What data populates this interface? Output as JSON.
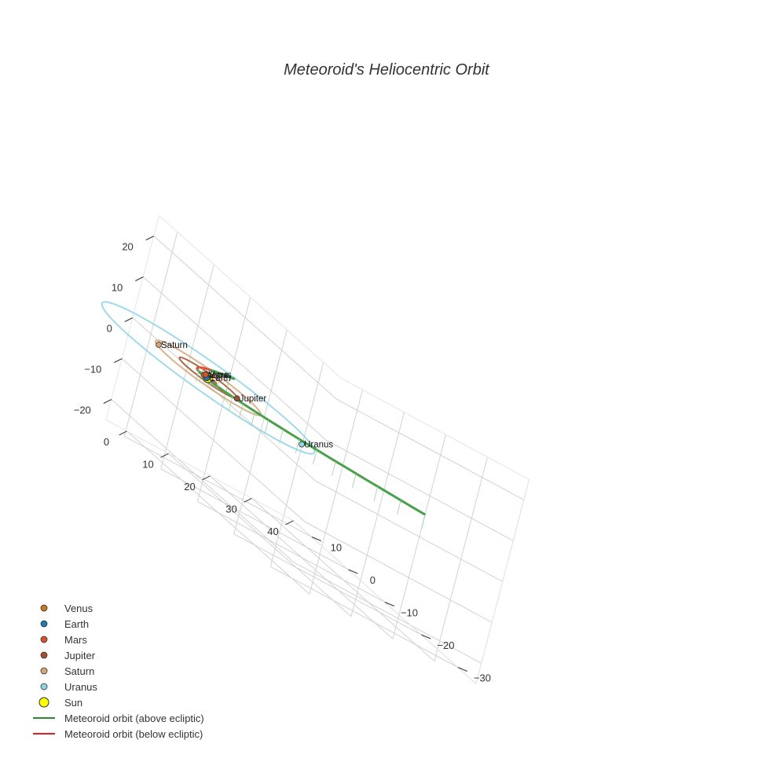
{
  "chart_data": {
    "type": "scatter3d",
    "title": "Meteoroid's Heliocentric Orbit",
    "axes": {
      "x": {
        "range": [
          -5,
          40
        ],
        "ticks": [
          0,
          10,
          20,
          30,
          40
        ],
        "label": ""
      },
      "y": {
        "range": [
          -35,
          15
        ],
        "ticks": [
          -30,
          -20,
          -10,
          0,
          10
        ],
        "label": ""
      },
      "z": {
        "range": [
          -25,
          25
        ],
        "ticks": [
          -20,
          -10,
          0,
          10,
          20
        ],
        "label": ""
      }
    },
    "planets": [
      {
        "name": "Venus",
        "color": "#c8781e",
        "x": -0.5,
        "y": 0.6,
        "z": 0,
        "orbit_radius": 0.72
      },
      {
        "name": "Earth",
        "color": "#1f78b4",
        "x": -0.8,
        "y": -0.6,
        "z": 0,
        "orbit_radius": 1.0
      },
      {
        "name": "Mars",
        "color": "#d9502a",
        "x": 0.6,
        "y": 1.4,
        "z": 0,
        "orbit_radius": 1.52
      },
      {
        "name": "Jupiter",
        "color": "#a0522d",
        "x": 3.5,
        "y": -3.9,
        "z": 0,
        "orbit_radius": 5.2
      },
      {
        "name": "Saturn",
        "color": "#d2a679",
        "x": -7.5,
        "y": 5.0,
        "z": 0,
        "orbit_radius": 9.5
      },
      {
        "name": "Uranus",
        "color": "#8fd3e6",
        "x": 11.5,
        "y": -12.5,
        "z": 0,
        "orbit_radius": 19.2
      }
    ],
    "sun": {
      "name": "Sun",
      "color": "#ffff00",
      "x": 0,
      "y": 0,
      "z": 0
    },
    "meteoroid": {
      "above": {
        "name": "Meteoroid orbit (above ecliptic)",
        "color": "#2a8c2a"
      },
      "below": {
        "name": "Meteoroid orbit (below ecliptic)",
        "color": "#e02020"
      },
      "description": "Parabolic orbit: y from -30 to 10 through perihelion near the Sun"
    },
    "legend": [
      {
        "name": "Venus",
        "symbol": "dot",
        "color": "#c8781e"
      },
      {
        "name": "Earth",
        "symbol": "dot",
        "color": "#1f78b4"
      },
      {
        "name": "Mars",
        "symbol": "dot",
        "color": "#d9502a"
      },
      {
        "name": "Jupiter",
        "symbol": "dot",
        "color": "#a0522d"
      },
      {
        "name": "Saturn",
        "symbol": "dot",
        "color": "#d2a679"
      },
      {
        "name": "Uranus",
        "symbol": "dot",
        "color": "#8fd3e6"
      },
      {
        "name": "Sun",
        "symbol": "bigdot",
        "color": "#ffff00"
      },
      {
        "name": "Meteoroid orbit (above ecliptic)",
        "symbol": "line",
        "color": "#2a8c2a"
      },
      {
        "name": "Meteoroid orbit (below ecliptic)",
        "symbol": "line",
        "color": "#e02020"
      }
    ],
    "legend_position": "bottom-left"
  }
}
